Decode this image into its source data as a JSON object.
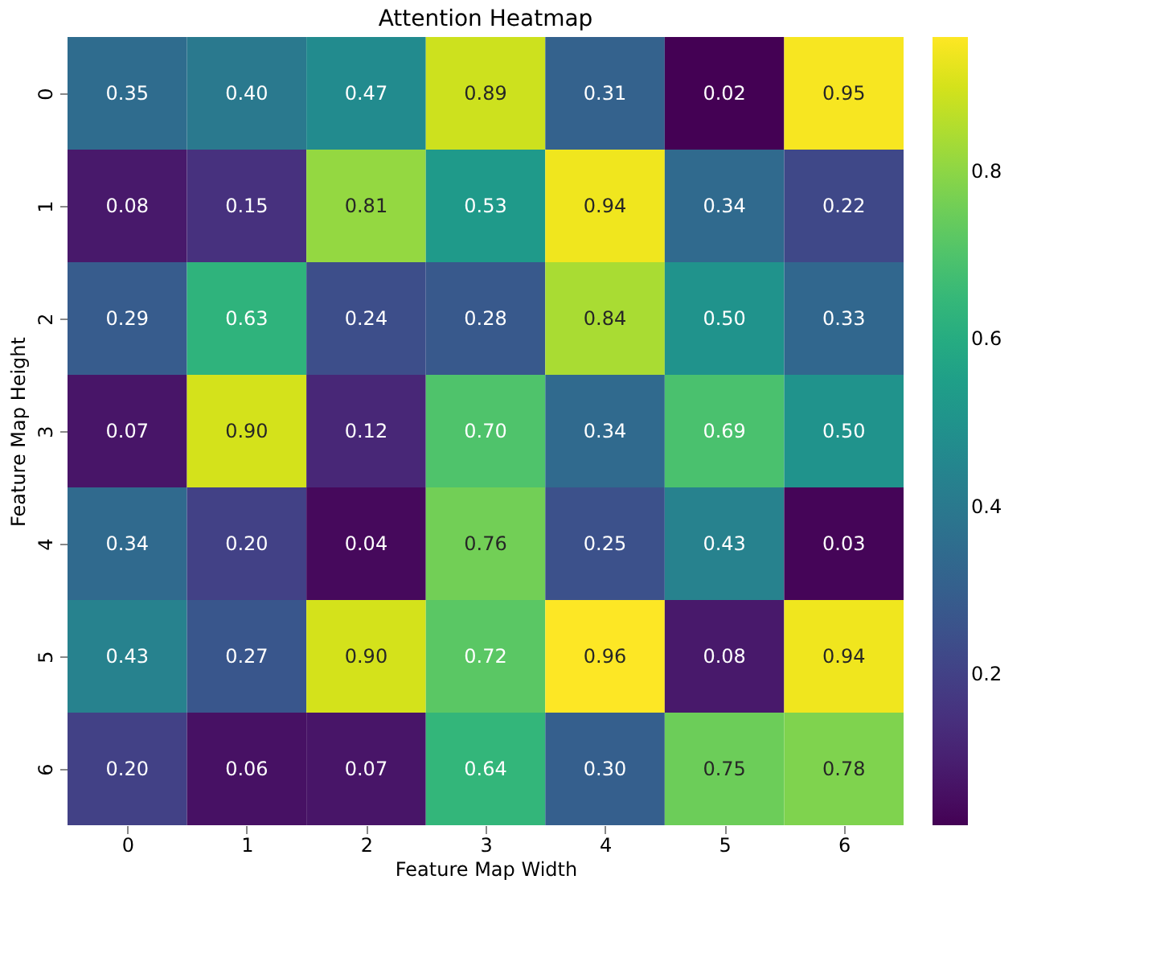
{
  "chart_data": {
    "type": "heatmap",
    "title": "Attention Heatmap",
    "xlabel": "Feature Map Width",
    "ylabel": "Feature Map Height",
    "categories": [
      "0",
      "1",
      "2",
      "3",
      "4",
      "5",
      "6"
    ],
    "y_categories": [
      "0",
      "1",
      "2",
      "3",
      "4",
      "5",
      "6"
    ],
    "cells": [
      [
        0.35,
        0.4,
        0.47,
        0.89,
        0.31,
        0.02,
        0.95
      ],
      [
        0.08,
        0.15,
        0.81,
        0.53,
        0.94,
        0.34,
        0.22
      ],
      [
        0.29,
        0.63,
        0.24,
        0.28,
        0.84,
        0.5,
        0.33
      ],
      [
        0.07,
        0.9,
        0.12,
        0.7,
        0.34,
        0.69,
        0.5
      ],
      [
        0.34,
        0.2,
        0.04,
        0.76,
        0.25,
        0.43,
        0.03
      ],
      [
        0.43,
        0.27,
        0.9,
        0.72,
        0.96,
        0.08,
        0.94
      ],
      [
        0.2,
        0.06,
        0.07,
        0.64,
        0.3,
        0.75,
        0.78
      ]
    ],
    "cell_labels": [
      [
        "0.35",
        "0.40",
        "0.47",
        "0.89",
        "0.31",
        "0.02",
        "0.95"
      ],
      [
        "0.08",
        "0.15",
        "0.81",
        "0.53",
        "0.94",
        "0.34",
        "0.22"
      ],
      [
        "0.29",
        "0.63",
        "0.24",
        "0.28",
        "0.84",
        "0.50",
        "0.33"
      ],
      [
        "0.07",
        "0.90",
        "0.12",
        "0.70",
        "0.34",
        "0.69",
        "0.50"
      ],
      [
        "0.34",
        "0.20",
        "0.04",
        "0.76",
        "0.25",
        "0.43",
        "0.03"
      ],
      [
        "0.43",
        "0.27",
        "0.90",
        "0.72",
        "0.96",
        "0.08",
        "0.94"
      ],
      [
        "0.20",
        "0.06",
        "0.07",
        "0.64",
        "0.30",
        "0.75",
        "0.78"
      ]
    ],
    "clim": [
      0.02,
      0.96
    ],
    "cticks": [
      0.2,
      0.4,
      0.6,
      0.8
    ]
  }
}
